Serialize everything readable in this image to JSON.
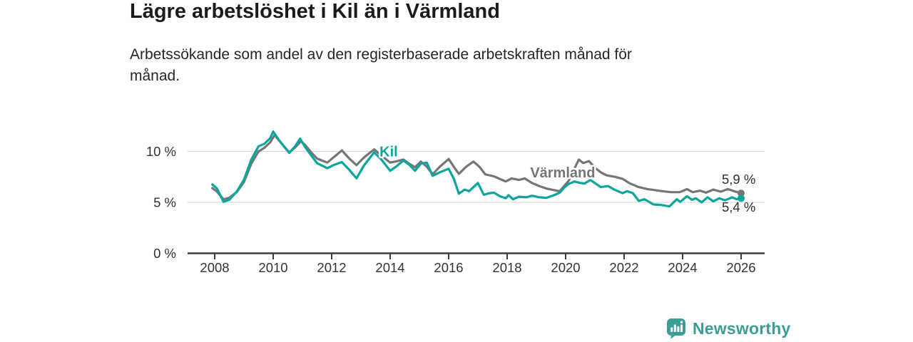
{
  "chart_data": {
    "type": "line",
    "title": "Lägre arbetslöshet i Kil än i Värmland",
    "subtitle": "Arbetssökande som andel av den registerbaserade arbetskraften månad för\nmånad.",
    "xlabel": "",
    "ylabel": "",
    "x_ticks": [
      2008,
      2010,
      2012,
      2014,
      2016,
      2018,
      2020,
      2022,
      2024,
      2026
    ],
    "y_ticks": [
      {
        "value": 0,
        "label": "0 %"
      },
      {
        "value": 5,
        "label": "5 %"
      },
      {
        "value": 10,
        "label": "10 %"
      }
    ],
    "xlim": [
      2007.9,
      2026.8
    ],
    "ylim": [
      0,
      12.6
    ],
    "grid": "horizontal",
    "legend_position": "inline-labels",
    "axis_color": "#3b3b3b",
    "grid_color": "#d9d9d9",
    "tick_label_color": "#333333",
    "end_label_color": "#2e2e2e",
    "series": [
      {
        "name": "Värmland",
        "color": "#757575",
        "end_label": "5,9 %",
        "end_label_position": "above",
        "label_at": [
          2019.9,
          7.45
        ],
        "points": [
          [
            2007.92,
            6.4
          ],
          [
            2008.08,
            6.05
          ],
          [
            2008.3,
            5.3
          ],
          [
            2008.5,
            5.45
          ],
          [
            2008.75,
            6.0
          ],
          [
            2009.0,
            7.0
          ],
          [
            2009.25,
            8.8
          ],
          [
            2009.5,
            10.0
          ],
          [
            2009.7,
            10.35
          ],
          [
            2009.9,
            10.9
          ],
          [
            2010.05,
            11.6
          ],
          [
            2010.25,
            10.9
          ],
          [
            2010.55,
            9.9
          ],
          [
            2010.75,
            10.4
          ],
          [
            2010.95,
            11.0
          ],
          [
            2011.1,
            10.6
          ],
          [
            2011.3,
            9.9
          ],
          [
            2011.5,
            9.3
          ],
          [
            2011.85,
            8.9
          ],
          [
            2012.1,
            9.5
          ],
          [
            2012.35,
            10.1
          ],
          [
            2012.6,
            9.3
          ],
          [
            2012.85,
            8.65
          ],
          [
            2013.1,
            9.4
          ],
          [
            2013.45,
            10.2
          ],
          [
            2013.7,
            9.6
          ],
          [
            2014.0,
            8.9
          ],
          [
            2014.25,
            9.05
          ],
          [
            2014.45,
            9.2
          ],
          [
            2014.65,
            8.8
          ],
          [
            2014.85,
            8.45
          ],
          [
            2015.05,
            9.0
          ],
          [
            2015.25,
            8.5
          ],
          [
            2015.45,
            7.75
          ],
          [
            2015.7,
            8.5
          ],
          [
            2016.0,
            9.25
          ],
          [
            2016.2,
            8.4
          ],
          [
            2016.35,
            7.8
          ],
          [
            2016.6,
            8.5
          ],
          [
            2016.85,
            9.0
          ],
          [
            2017.05,
            8.5
          ],
          [
            2017.25,
            7.75
          ],
          [
            2017.55,
            7.55
          ],
          [
            2017.75,
            7.3
          ],
          [
            2017.95,
            7.05
          ],
          [
            2018.15,
            7.35
          ],
          [
            2018.4,
            7.2
          ],
          [
            2018.6,
            7.35
          ],
          [
            2018.85,
            6.9
          ],
          [
            2019.1,
            6.6
          ],
          [
            2019.35,
            6.35
          ],
          [
            2019.6,
            6.2
          ],
          [
            2019.8,
            6.1
          ],
          [
            2019.95,
            6.6
          ],
          [
            2020.1,
            7.1
          ],
          [
            2020.3,
            8.3
          ],
          [
            2020.45,
            9.2
          ],
          [
            2020.6,
            8.85
          ],
          [
            2020.8,
            9.05
          ],
          [
            2021.0,
            8.4
          ],
          [
            2021.2,
            7.95
          ],
          [
            2021.4,
            7.65
          ],
          [
            2021.7,
            7.5
          ],
          [
            2021.95,
            7.3
          ],
          [
            2022.2,
            6.85
          ],
          [
            2022.5,
            6.5
          ],
          [
            2022.8,
            6.3
          ],
          [
            2023.05,
            6.2
          ],
          [
            2023.3,
            6.1
          ],
          [
            2023.6,
            6.0
          ],
          [
            2023.9,
            6.0
          ],
          [
            2024.15,
            6.3
          ],
          [
            2024.35,
            6.0
          ],
          [
            2024.6,
            6.15
          ],
          [
            2024.8,
            5.95
          ],
          [
            2025.05,
            6.25
          ],
          [
            2025.3,
            6.05
          ],
          [
            2025.55,
            6.3
          ],
          [
            2025.75,
            6.1
          ],
          [
            2026.0,
            5.9
          ]
        ]
      },
      {
        "name": "Kil",
        "color": "#0aa69c",
        "end_label": "5,4 %",
        "end_label_position": "below",
        "label_at": [
          2013.95,
          9.5
        ],
        "points": [
          [
            2007.92,
            6.75
          ],
          [
            2008.08,
            6.35
          ],
          [
            2008.3,
            5.05
          ],
          [
            2008.5,
            5.25
          ],
          [
            2008.75,
            6.05
          ],
          [
            2009.0,
            7.2
          ],
          [
            2009.25,
            9.2
          ],
          [
            2009.5,
            10.5
          ],
          [
            2009.7,
            10.75
          ],
          [
            2009.9,
            11.3
          ],
          [
            2010.0,
            11.95
          ],
          [
            2010.2,
            11.1
          ],
          [
            2010.55,
            9.85
          ],
          [
            2010.75,
            10.5
          ],
          [
            2010.92,
            11.25
          ],
          [
            2011.1,
            10.4
          ],
          [
            2011.3,
            9.6
          ],
          [
            2011.5,
            8.85
          ],
          [
            2011.85,
            8.35
          ],
          [
            2012.1,
            8.7
          ],
          [
            2012.35,
            8.95
          ],
          [
            2012.6,
            8.2
          ],
          [
            2012.85,
            7.35
          ],
          [
            2013.1,
            8.6
          ],
          [
            2013.45,
            9.9
          ],
          [
            2013.7,
            9.2
          ],
          [
            2014.0,
            8.1
          ],
          [
            2014.2,
            8.5
          ],
          [
            2014.45,
            9.1
          ],
          [
            2014.65,
            8.7
          ],
          [
            2014.85,
            8.1
          ],
          [
            2015.05,
            8.8
          ],
          [
            2015.25,
            8.9
          ],
          [
            2015.45,
            7.6
          ],
          [
            2015.7,
            7.95
          ],
          [
            2016.0,
            8.3
          ],
          [
            2016.18,
            7.3
          ],
          [
            2016.35,
            5.85
          ],
          [
            2016.55,
            6.25
          ],
          [
            2016.7,
            6.1
          ],
          [
            2017.0,
            6.9
          ],
          [
            2017.2,
            5.75
          ],
          [
            2017.4,
            5.9
          ],
          [
            2017.55,
            5.95
          ],
          [
            2017.75,
            5.6
          ],
          [
            2017.95,
            5.4
          ],
          [
            2018.05,
            5.7
          ],
          [
            2018.2,
            5.3
          ],
          [
            2018.4,
            5.55
          ],
          [
            2018.65,
            5.5
          ],
          [
            2018.85,
            5.65
          ],
          [
            2019.1,
            5.5
          ],
          [
            2019.35,
            5.45
          ],
          [
            2019.6,
            5.7
          ],
          [
            2019.8,
            5.95
          ],
          [
            2019.95,
            6.45
          ],
          [
            2020.1,
            6.8
          ],
          [
            2020.3,
            7.05
          ],
          [
            2020.5,
            6.9
          ],
          [
            2020.65,
            6.85
          ],
          [
            2020.85,
            7.2
          ],
          [
            2021.05,
            6.8
          ],
          [
            2021.2,
            6.5
          ],
          [
            2021.45,
            6.6
          ],
          [
            2021.7,
            6.2
          ],
          [
            2021.95,
            5.9
          ],
          [
            2022.1,
            6.1
          ],
          [
            2022.3,
            5.9
          ],
          [
            2022.5,
            5.15
          ],
          [
            2022.7,
            5.3
          ],
          [
            2023.0,
            4.8
          ],
          [
            2023.25,
            4.75
          ],
          [
            2023.55,
            4.6
          ],
          [
            2023.8,
            5.3
          ],
          [
            2023.92,
            5.05
          ],
          [
            2024.15,
            5.6
          ],
          [
            2024.32,
            5.25
          ],
          [
            2024.45,
            5.4
          ],
          [
            2024.65,
            5.0
          ],
          [
            2024.85,
            5.5
          ],
          [
            2025.05,
            5.1
          ],
          [
            2025.25,
            5.4
          ],
          [
            2025.45,
            5.2
          ],
          [
            2025.7,
            5.5
          ],
          [
            2025.85,
            5.3
          ],
          [
            2026.0,
            5.4
          ]
        ]
      }
    ]
  },
  "footer": {
    "brand": "Newsworthy",
    "brand_color": "#3b9e96",
    "logo_icon": "bar-chart-speech-bubble"
  }
}
